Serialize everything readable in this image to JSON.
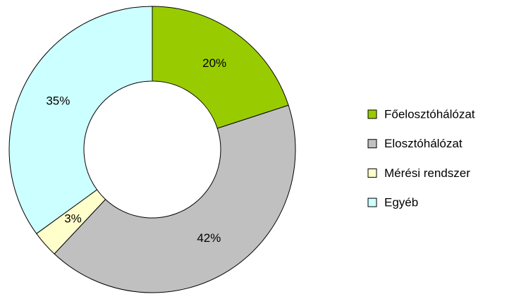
{
  "chart_data": {
    "type": "donut",
    "categories": [
      "Főelosztóhálózat",
      "Elosztóhálózat",
      "Mérési rendszer",
      "Egyéb"
    ],
    "values": [
      20,
      42,
      3,
      35
    ],
    "value_labels": [
      "20%",
      "42%",
      "3%",
      "35%"
    ],
    "colors": [
      "#99cc00",
      "#c0c0c0",
      "#ffffcc",
      "#ccffff"
    ],
    "legend": "right"
  }
}
